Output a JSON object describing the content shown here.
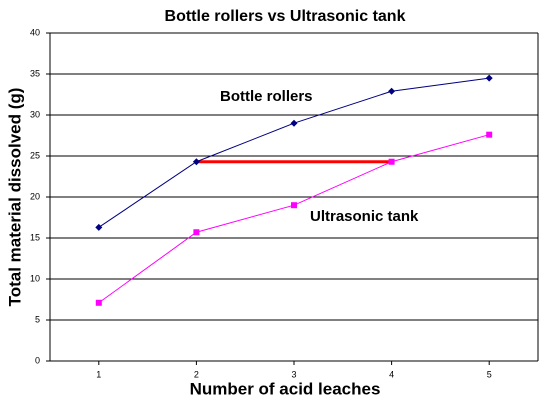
{
  "chart_data": {
    "type": "line",
    "title": "Bottle rollers vs Ultrasonic tank",
    "x_label": "Number of acid leaches",
    "y_label": "Total material dissolved (g)",
    "x": [
      1,
      2,
      3,
      4,
      5
    ],
    "xlim": [
      0.5,
      5.5
    ],
    "xticks": [
      1,
      2,
      3,
      4,
      5
    ],
    "ylim": [
      0,
      40
    ],
    "yticks": [
      0,
      5,
      10,
      15,
      20,
      25,
      30,
      35,
      40
    ],
    "grid": true,
    "series": [
      {
        "name": "Bottle rollers",
        "color": "#000080",
        "marker": "diamond",
        "values": [
          16.3,
          24.3,
          29,
          32.9,
          34.5
        ]
      },
      {
        "name": "Ultrasonic tank",
        "color": "#ff00ff",
        "marker": "square",
        "values": [
          7.1,
          15.7,
          19,
          24.3,
          27.6
        ]
      }
    ],
    "reference_line": {
      "color": "#ff0000",
      "x": [
        2,
        4
      ],
      "y": 24.3
    }
  }
}
